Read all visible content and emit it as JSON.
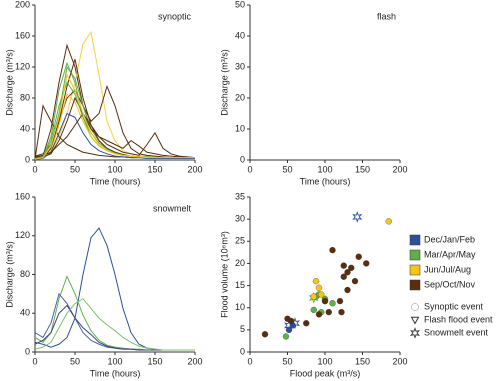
{
  "chart_data": [
    {
      "type": "line",
      "title": "synoptic",
      "x_label": "Time (hours)",
      "y_label": "Discharge (m³/s)",
      "xlim": [
        0,
        200
      ],
      "xticks": [
        0,
        50,
        100,
        150,
        200
      ],
      "ylim": [
        0,
        200
      ],
      "yticks": [
        0,
        40,
        80,
        120,
        160,
        200
      ],
      "x": [
        0,
        10,
        20,
        30,
        40,
        50,
        60,
        70,
        80,
        90,
        100,
        110,
        120,
        130,
        140,
        150,
        160,
        170,
        180,
        190,
        200
      ],
      "series": [
        {
          "color": "#5a2d0c",
          "values": [
            2,
            5,
            40,
            100,
            148,
            120,
            70,
            40,
            25,
            15,
            10,
            7,
            5,
            4,
            3,
            3,
            2,
            2,
            2,
            2,
            2
          ]
        },
        {
          "color": "#f5d33a",
          "values": [
            3,
            4,
            10,
            30,
            60,
            100,
            150,
            165,
            110,
            50,
            25,
            12,
            8,
            6,
            5,
            4,
            3,
            3,
            3,
            3,
            3
          ]
        },
        {
          "color": "#5a2d0c",
          "values": [
            5,
            8,
            20,
            50,
            80,
            90,
            70,
            50,
            60,
            95,
            70,
            35,
            15,
            8,
            6,
            5,
            4,
            3,
            3,
            3,
            3
          ]
        },
        {
          "color": "#5fb04a",
          "values": [
            2,
            4,
            30,
            90,
            125,
            100,
            55,
            30,
            18,
            12,
            8,
            6,
            5,
            4,
            3,
            3,
            3,
            3,
            2,
            2,
            2
          ]
        },
        {
          "color": "#5a2d0c",
          "values": [
            1,
            70,
            50,
            30,
            20,
            15,
            10,
            8,
            6,
            5,
            4,
            4,
            3,
            3,
            3,
            2,
            2,
            2,
            2,
            2,
            2
          ]
        },
        {
          "color": "#5fb04a",
          "values": [
            3,
            5,
            20,
            60,
            120,
            105,
            70,
            40,
            25,
            15,
            10,
            7,
            5,
            4,
            4,
            3,
            3,
            3,
            3,
            3,
            3
          ]
        },
        {
          "color": "#5a2d0c",
          "values": [
            2,
            3,
            15,
            50,
            95,
            130,
            80,
            45,
            25,
            15,
            10,
            7,
            5,
            4,
            3,
            3,
            3,
            3,
            3,
            3,
            3
          ]
        },
        {
          "color": "#f5c518",
          "values": [
            2,
            3,
            12,
            45,
            85,
            75,
            50,
            30,
            18,
            12,
            8,
            6,
            5,
            4,
            3,
            3,
            3,
            3,
            3,
            3,
            3
          ]
        },
        {
          "color": "#5a2d0c",
          "values": [
            3,
            4,
            8,
            25,
            50,
            80,
            60,
            40,
            30,
            25,
            20,
            15,
            25,
            18,
            10,
            8,
            6,
            5,
            4,
            4,
            3
          ]
        },
        {
          "color": "#2e4fa0",
          "values": [
            1,
            2,
            10,
            35,
            60,
            55,
            35,
            20,
            12,
            8,
            5,
            4,
            3,
            3,
            2,
            2,
            2,
            2,
            2,
            2,
            2
          ]
        },
        {
          "color": "#5a2d0c",
          "values": [
            4,
            6,
            10,
            20,
            30,
            45,
            60,
            45,
            30,
            20,
            15,
            10,
            8,
            6,
            20,
            35,
            15,
            8,
            5,
            4,
            3
          ]
        },
        {
          "color": "#5fb04a",
          "values": [
            2,
            4,
            25,
            70,
            100,
            85,
            55,
            35,
            22,
            14,
            9,
            6,
            5,
            4,
            3,
            3,
            3,
            3,
            3,
            3,
            3
          ]
        },
        {
          "color": "#f5c518",
          "values": [
            1,
            3,
            18,
            55,
            110,
            90,
            60,
            35,
            20,
            12,
            8,
            6,
            5,
            4,
            3,
            3,
            3,
            3,
            3,
            3,
            3
          ]
        }
      ]
    },
    {
      "type": "line",
      "title": "flash",
      "x_label": "Time (hours)",
      "y_label": "Discharge (m³/s)",
      "xlim": [
        0,
        200
      ],
      "xticks": [
        0,
        50,
        100,
        150,
        200
      ],
      "ylim": [
        0,
        50
      ],
      "yticks": [
        0,
        10,
        20,
        30,
        40,
        50
      ],
      "x": [],
      "series": []
    },
    {
      "type": "line",
      "title": "snowmelt",
      "x_label": "Time (hours)",
      "y_label": "Discharge (m³/s)",
      "xlim": [
        0,
        200
      ],
      "xticks": [
        0,
        50,
        100,
        150,
        200
      ],
      "ylim": [
        0,
        160
      ],
      "yticks": [
        0,
        40,
        80,
        120,
        160
      ],
      "x": [
        0,
        10,
        20,
        30,
        40,
        50,
        60,
        70,
        80,
        90,
        100,
        110,
        120,
        130,
        140,
        150,
        160,
        170,
        180,
        190,
        200
      ],
      "series": [
        {
          "color": "#2e4fa0",
          "values": [
            10,
            8,
            5,
            8,
            15,
            35,
            80,
            118,
            128,
            110,
            80,
            45,
            20,
            8,
            4,
            3,
            2,
            2,
            2,
            2,
            2
          ]
        },
        {
          "color": "#5fb04a",
          "values": [
            15,
            10,
            20,
            55,
            78,
            60,
            38,
            22,
            12,
            7,
            5,
            4,
            3,
            3,
            2,
            2,
            2,
            2,
            2,
            2,
            2
          ]
        },
        {
          "color": "#4a5fb0",
          "values": [
            20,
            15,
            30,
            60,
            50,
            35,
            20,
            12,
            8,
            5,
            4,
            3,
            3,
            2,
            2,
            2,
            2,
            2,
            2,
            2,
            2
          ]
        },
        {
          "color": "#3a3f7a",
          "values": [
            8,
            12,
            20,
            40,
            48,
            35,
            25,
            18,
            10,
            6,
            4,
            3,
            3,
            2,
            2,
            2,
            2,
            2,
            2,
            2,
            2
          ]
        },
        {
          "color": "#7cc06a",
          "values": [
            3,
            5,
            10,
            25,
            40,
            50,
            55,
            45,
            35,
            28,
            22,
            15,
            10,
            6,
            4,
            3,
            2,
            2,
            2,
            2,
            2
          ]
        }
      ]
    },
    {
      "type": "scatter",
      "x_label": "Flood peak (m³/s)",
      "y_label": "Flood volume (10⁶m³)",
      "xlim": [
        0,
        200
      ],
      "xticks": [
        0,
        50,
        100,
        150,
        200
      ],
      "ylim": [
        0,
        35
      ],
      "yticks": [
        0,
        5,
        10,
        15,
        20,
        25,
        30,
        35
      ],
      "series": [
        {
          "name": "Dec/Jan/Feb",
          "color": "#2e4fa0",
          "x": [
            52,
            57,
            143,
            60,
            52
          ],
          "values": [
            5,
            6,
            30.5,
            6.5,
            6
          ],
          "markers": [
            "circle",
            "circle",
            "star",
            "star",
            "star"
          ]
        },
        {
          "name": "Mar/Apr/May",
          "color": "#5fb04a",
          "x": [
            48,
            85,
            88,
            92,
            95,
            100,
            110,
            85
          ],
          "values": [
            3.5,
            9.5,
            12.5,
            13,
            9,
            12,
            11,
            12.2
          ],
          "markers": [
            "circle",
            "circle",
            "circle",
            "circle",
            "circle",
            "circle",
            "circle",
            "star"
          ]
        },
        {
          "name": "Jun/Jul/Aug",
          "color": "#f5c518",
          "x": [
            185,
            88,
            92,
            95,
            100,
            85
          ],
          "values": [
            29.5,
            16,
            14.5,
            13,
            11.5,
            12.5
          ],
          "markers": [
            "circle",
            "circle",
            "circle",
            "circle",
            "circle",
            "circle"
          ]
        },
        {
          "name": "Sep/Oct/Nov",
          "color": "#5a2d0c",
          "x": [
            20,
            50,
            55,
            75,
            92,
            100,
            110,
            120,
            125,
            125,
            130,
            130,
            135,
            140,
            145,
            155,
            122,
            105
          ],
          "values": [
            4,
            7.5,
            7,
            6.5,
            8.5,
            11.5,
            23,
            11.5,
            19.5,
            17,
            18,
            14,
            19,
            16,
            21.5,
            20,
            9,
            9
          ],
          "markers": [
            "circle",
            "circle",
            "circle",
            "circle",
            "circle",
            "circle",
            "circle",
            "circle",
            "circle",
            "circle",
            "circle",
            "circle",
            "circle",
            "circle",
            "circle",
            "circle",
            "circle",
            "circle"
          ]
        }
      ],
      "marker_legend": [
        {
          "name": "Synoptic event",
          "marker": "circle"
        },
        {
          "name": "Flash flood event",
          "marker": "triangle"
        },
        {
          "name": "Snowmelt event",
          "marker": "star"
        }
      ]
    }
  ]
}
